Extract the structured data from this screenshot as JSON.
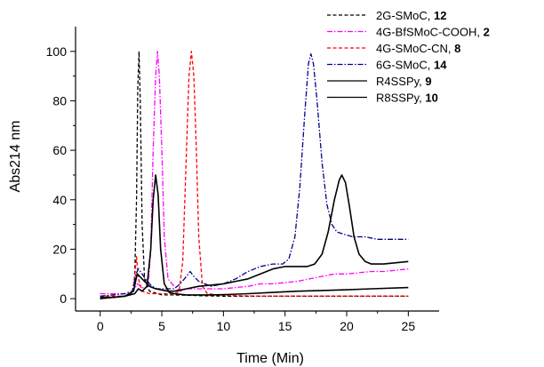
{
  "chart_data": {
    "type": "line",
    "xlabel": "Time (Min)",
    "ylabel": "Abs214 nm",
    "xlim": [
      -2,
      27.5
    ],
    "ylim": [
      -5,
      110
    ],
    "xticks": [
      0,
      5,
      10,
      15,
      20,
      25
    ],
    "yticks": [
      0,
      20,
      40,
      60,
      80,
      100
    ],
    "grid": false,
    "legend_position": "top-right",
    "series": [
      {
        "name": "2G-SMoC, ",
        "name_bold": "12",
        "color": "#000000",
        "dash": "dashed",
        "points": [
          [
            0,
            0
          ],
          [
            1,
            0.5
          ],
          [
            2,
            1
          ],
          [
            2.6,
            2
          ],
          [
            2.8,
            8
          ],
          [
            2.95,
            40
          ],
          [
            3.05,
            85
          ],
          [
            3.15,
            100
          ],
          [
            3.25,
            80
          ],
          [
            3.4,
            30
          ],
          [
            3.6,
            8
          ],
          [
            4,
            3
          ],
          [
            5,
            1.5
          ],
          [
            6,
            1.5
          ],
          [
            8,
            1.2
          ],
          [
            10,
            1
          ],
          [
            12,
            1
          ],
          [
            15,
            1
          ],
          [
            18,
            1
          ],
          [
            21,
            1
          ],
          [
            25,
            1
          ]
        ]
      },
      {
        "name": "4G-BfSMoC-COOH, ",
        "name_bold": "2",
        "color": "#ff00ff",
        "dash": "dashdot",
        "points": [
          [
            0,
            2
          ],
          [
            1,
            2
          ],
          [
            2,
            2
          ],
          [
            2.5,
            2.5
          ],
          [
            2.8,
            4
          ],
          [
            3.0,
            6
          ],
          [
            3.3,
            5
          ],
          [
            3.6,
            4
          ],
          [
            3.9,
            6
          ],
          [
            4.1,
            20
          ],
          [
            4.3,
            60
          ],
          [
            4.5,
            90
          ],
          [
            4.65,
            100
          ],
          [
            4.8,
            90
          ],
          [
            5.0,
            60
          ],
          [
            5.2,
            25
          ],
          [
            5.5,
            8
          ],
          [
            6,
            5
          ],
          [
            6.5,
            3
          ],
          [
            7,
            4
          ],
          [
            8,
            4
          ],
          [
            9,
            4
          ],
          [
            10,
            4
          ],
          [
            11,
            4.5
          ],
          [
            12,
            5
          ],
          [
            13,
            6
          ],
          [
            14,
            6
          ],
          [
            15,
            6.5
          ],
          [
            16,
            7
          ],
          [
            17,
            8
          ],
          [
            18,
            9
          ],
          [
            19,
            10
          ],
          [
            20,
            10
          ],
          [
            21,
            10.5
          ],
          [
            22,
            11
          ],
          [
            23,
            11
          ],
          [
            24,
            11.5
          ],
          [
            25,
            12
          ]
        ]
      },
      {
        "name": "4G-SMoC-CN, ",
        "name_bold": "8",
        "color": "#ff0000",
        "dash": "dashed",
        "points": [
          [
            0,
            1
          ],
          [
            1,
            1
          ],
          [
            2,
            1
          ],
          [
            2.6,
            2
          ],
          [
            2.8,
            9
          ],
          [
            2.95,
            17
          ],
          [
            3.1,
            8
          ],
          [
            3.4,
            3
          ],
          [
            4,
            2
          ],
          [
            5,
            2
          ],
          [
            6,
            2
          ],
          [
            6.4,
            3
          ],
          [
            6.7,
            15
          ],
          [
            7.0,
            60
          ],
          [
            7.2,
            90
          ],
          [
            7.4,
            100
          ],
          [
            7.6,
            90
          ],
          [
            7.8,
            60
          ],
          [
            8.0,
            25
          ],
          [
            8.3,
            5
          ],
          [
            8.7,
            2
          ],
          [
            9.5,
            1.5
          ],
          [
            11,
            1.2
          ],
          [
            13,
            1
          ],
          [
            15,
            1
          ],
          [
            18,
            1
          ],
          [
            21,
            1
          ],
          [
            25,
            1
          ]
        ]
      },
      {
        "name": "6G-SMoC, ",
        "name_bold": "14",
        "color": "#00008b",
        "dash": "dashdot",
        "points": [
          [
            0,
            1
          ],
          [
            1,
            1.5
          ],
          [
            2,
            2
          ],
          [
            2.6,
            3
          ],
          [
            2.9,
            10
          ],
          [
            3.1,
            12
          ],
          [
            3.4,
            10
          ],
          [
            3.8,
            7
          ],
          [
            4.2,
            5
          ],
          [
            4.6,
            4
          ],
          [
            5,
            4
          ],
          [
            5.5,
            4
          ],
          [
            6,
            4
          ],
          [
            6.5,
            6
          ],
          [
            7,
            9
          ],
          [
            7.3,
            11
          ],
          [
            7.6,
            9
          ],
          [
            8,
            7
          ],
          [
            8.5,
            6
          ],
          [
            9,
            5
          ],
          [
            10,
            6
          ],
          [
            11,
            8
          ],
          [
            12,
            11
          ],
          [
            13,
            13
          ],
          [
            14,
            14
          ],
          [
            14.8,
            14
          ],
          [
            15.3,
            16
          ],
          [
            15.8,
            25
          ],
          [
            16.2,
            45
          ],
          [
            16.6,
            75
          ],
          [
            16.9,
            95
          ],
          [
            17.1,
            99
          ],
          [
            17.3,
            95
          ],
          [
            17.6,
            80
          ],
          [
            18,
            55
          ],
          [
            18.4,
            38
          ],
          [
            18.8,
            30
          ],
          [
            19.2,
            27
          ],
          [
            19.8,
            26
          ],
          [
            20.5,
            25
          ],
          [
            21.5,
            25
          ],
          [
            22.5,
            24
          ],
          [
            23.5,
            24
          ],
          [
            24.5,
            24
          ],
          [
            25,
            24
          ]
        ]
      },
      {
        "name": "R4SSPy, ",
        "name_bold": "9",
        "color": "#000000",
        "dash": "solid",
        "points": [
          [
            0,
            0.5
          ],
          [
            1,
            0.5
          ],
          [
            2,
            1
          ],
          [
            2.8,
            2
          ],
          [
            3.1,
            4
          ],
          [
            3.4,
            3
          ],
          [
            3.8,
            5
          ],
          [
            4.1,
            20
          ],
          [
            4.3,
            40
          ],
          [
            4.5,
            50
          ],
          [
            4.7,
            42
          ],
          [
            4.9,
            20
          ],
          [
            5.2,
            6
          ],
          [
            5.6,
            2.5
          ],
          [
            6,
            2
          ],
          [
            7,
            1.5
          ],
          [
            8,
            1.5
          ],
          [
            9,
            1.5
          ],
          [
            10,
            1.6
          ],
          [
            12,
            2
          ],
          [
            14,
            2.5
          ],
          [
            16,
            3
          ],
          [
            18,
            3.3
          ],
          [
            20,
            3.6
          ],
          [
            22,
            4
          ],
          [
            25,
            4.5
          ]
        ]
      },
      {
        "name": "R8SSPy, ",
        "name_bold": "10",
        "color": "#000000",
        "dash": "solid",
        "points": [
          [
            0,
            0
          ],
          [
            1,
            0.5
          ],
          [
            2,
            1
          ],
          [
            2.7,
            3
          ],
          [
            3.0,
            10
          ],
          [
            3.2,
            9
          ],
          [
            3.6,
            7
          ],
          [
            4,
            5
          ],
          [
            4.5,
            4
          ],
          [
            5,
            3.5
          ],
          [
            5.5,
            3
          ],
          [
            6,
            3
          ],
          [
            7,
            4
          ],
          [
            8,
            5
          ],
          [
            9,
            5.5
          ],
          [
            10,
            6
          ],
          [
            11,
            7
          ],
          [
            12,
            8
          ],
          [
            13,
            10
          ],
          [
            14,
            12
          ],
          [
            15,
            13
          ],
          [
            16,
            13
          ],
          [
            16.8,
            13
          ],
          [
            17.4,
            14
          ],
          [
            18,
            18
          ],
          [
            18.5,
            27
          ],
          [
            19,
            40
          ],
          [
            19.4,
            48
          ],
          [
            19.6,
            50
          ],
          [
            19.9,
            47
          ],
          [
            20.2,
            38
          ],
          [
            20.6,
            25
          ],
          [
            21,
            18
          ],
          [
            21.5,
            15
          ],
          [
            22,
            14
          ],
          [
            23,
            14
          ],
          [
            24,
            14.5
          ],
          [
            25,
            15
          ]
        ]
      }
    ]
  }
}
